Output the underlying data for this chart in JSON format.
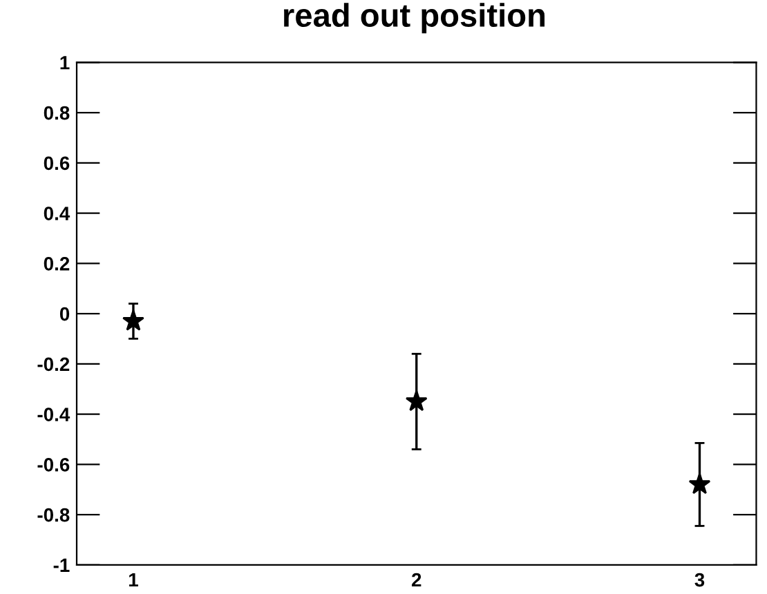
{
  "chart_data": {
    "type": "scatter",
    "title": "read out position",
    "x": [
      1,
      2,
      3
    ],
    "values": [
      -0.03,
      -0.35,
      -0.68
    ],
    "errors": [
      0.07,
      0.19,
      0.165
    ],
    "color": "#000000",
    "marker": "star",
    "xlim": [
      0.8,
      3.2
    ],
    "xticks": [
      1,
      2,
      3
    ],
    "ylim": [
      -1,
      1
    ],
    "yticks": [
      1,
      0.8,
      0.6,
      0.4,
      0.2,
      0,
      {
        "value": -0.2,
        "label": "-0.2"
      },
      {
        "value": -0.4,
        "label": "-0.4"
      },
      {
        "value": -0.6,
        "label": "-0.6"
      },
      {
        "value": -0.8,
        "label": "-0.8"
      },
      {
        "value": -1,
        "label": "-1"
      }
    ],
    "grid": false,
    "legend": false
  }
}
